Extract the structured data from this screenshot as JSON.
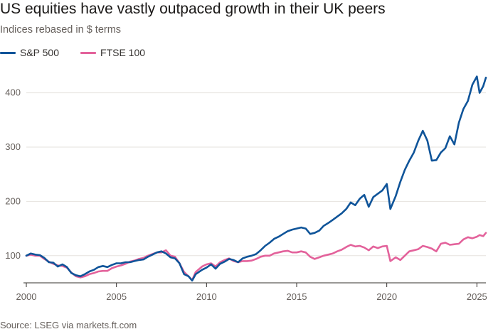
{
  "title": "US equities have vastly outpaced growth in their UK peers",
  "subtitle": "Indices rebased in $ terms",
  "source": "Source: LSEG via markets.ft.com",
  "colors": {
    "sp500": "#0f5499",
    "ftse": "#e3629b",
    "grid": "#e6e2de",
    "axis": "#33302e"
  },
  "chart_data": {
    "type": "line",
    "title": "US equities have vastly outpaced growth in their UK peers",
    "subtitle": "Indices rebased in $ terms",
    "xlabel": "",
    "ylabel": "",
    "xlim": [
      2000,
      2025.5
    ],
    "ylim": [
      50,
      440
    ],
    "xticks": [
      2000,
      2005,
      2010,
      2015,
      2020,
      2025
    ],
    "xtick_labels": [
      "2000",
      "2005",
      "2010",
      "2015",
      "2020",
      "2025"
    ],
    "yticks": [
      100,
      200,
      300,
      400
    ],
    "ytick_labels": [
      "100",
      "200",
      "300",
      "400"
    ],
    "grid": "horizontal",
    "legend_position": "top-left",
    "series": [
      {
        "name": "S&P 500",
        "color": "#0f5499",
        "points": [
          [
            2000.0,
            100
          ],
          [
            2000.25,
            104
          ],
          [
            2000.5,
            102
          ],
          [
            2000.75,
            101
          ],
          [
            2001.0,
            96
          ],
          [
            2001.25,
            88
          ],
          [
            2001.5,
            87
          ],
          [
            2001.75,
            80
          ],
          [
            2002.0,
            84
          ],
          [
            2002.25,
            79
          ],
          [
            2002.5,
            68
          ],
          [
            2002.75,
            64
          ],
          [
            2003.0,
            62
          ],
          [
            2003.25,
            66
          ],
          [
            2003.5,
            71
          ],
          [
            2003.75,
            74
          ],
          [
            2004.0,
            79
          ],
          [
            2004.25,
            81
          ],
          [
            2004.5,
            79
          ],
          [
            2004.75,
            83
          ],
          [
            2005.0,
            86
          ],
          [
            2005.25,
            86
          ],
          [
            2005.5,
            88
          ],
          [
            2005.75,
            88
          ],
          [
            2006.0,
            90
          ],
          [
            2006.25,
            92
          ],
          [
            2006.5,
            93
          ],
          [
            2006.75,
            98
          ],
          [
            2007.0,
            102
          ],
          [
            2007.25,
            106
          ],
          [
            2007.5,
            108
          ],
          [
            2007.75,
            104
          ],
          [
            2008.0,
            97
          ],
          [
            2008.25,
            95
          ],
          [
            2008.5,
            86
          ],
          [
            2008.75,
            66
          ],
          [
            2009.0,
            62
          ],
          [
            2009.2,
            54
          ],
          [
            2009.4,
            66
          ],
          [
            2009.75,
            74
          ],
          [
            2010.0,
            78
          ],
          [
            2010.25,
            84
          ],
          [
            2010.5,
            76
          ],
          [
            2010.75,
            85
          ],
          [
            2011.0,
            89
          ],
          [
            2011.25,
            94
          ],
          [
            2011.5,
            92
          ],
          [
            2011.75,
            88
          ],
          [
            2012.0,
            95
          ],
          [
            2012.25,
            98
          ],
          [
            2012.5,
            100
          ],
          [
            2012.75,
            103
          ],
          [
            2013.0,
            110
          ],
          [
            2013.25,
            118
          ],
          [
            2013.5,
            124
          ],
          [
            2013.75,
            131
          ],
          [
            2014.0,
            135
          ],
          [
            2014.25,
            140
          ],
          [
            2014.5,
            145
          ],
          [
            2014.75,
            148
          ],
          [
            2015.0,
            150
          ],
          [
            2015.25,
            152
          ],
          [
            2015.5,
            150
          ],
          [
            2015.75,
            140
          ],
          [
            2016.0,
            142
          ],
          [
            2016.25,
            146
          ],
          [
            2016.5,
            155
          ],
          [
            2016.75,
            160
          ],
          [
            2017.0,
            166
          ],
          [
            2017.25,
            172
          ],
          [
            2017.5,
            178
          ],
          [
            2017.75,
            186
          ],
          [
            2018.0,
            198
          ],
          [
            2018.25,
            193
          ],
          [
            2018.5,
            205
          ],
          [
            2018.75,
            212
          ],
          [
            2019.0,
            190
          ],
          [
            2019.25,
            208
          ],
          [
            2019.5,
            214
          ],
          [
            2019.75,
            220
          ],
          [
            2020.0,
            232
          ],
          [
            2020.2,
            186
          ],
          [
            2020.5,
            210
          ],
          [
            2020.75,
            236
          ],
          [
            2021.0,
            258
          ],
          [
            2021.25,
            275
          ],
          [
            2021.5,
            290
          ],
          [
            2021.75,
            312
          ],
          [
            2022.0,
            330
          ],
          [
            2022.25,
            312
          ],
          [
            2022.5,
            275
          ],
          [
            2022.75,
            276
          ],
          [
            2023.0,
            290
          ],
          [
            2023.25,
            298
          ],
          [
            2023.5,
            320
          ],
          [
            2023.75,
            305
          ],
          [
            2024.0,
            345
          ],
          [
            2024.25,
            370
          ],
          [
            2024.5,
            385
          ],
          [
            2024.75,
            415
          ],
          [
            2025.0,
            430
          ],
          [
            2025.15,
            400
          ],
          [
            2025.35,
            412
          ],
          [
            2025.5,
            428
          ]
        ]
      },
      {
        "name": "FTSE 100",
        "color": "#e3629b",
        "points": [
          [
            2000.0,
            100
          ],
          [
            2000.25,
            102
          ],
          [
            2000.5,
            100
          ],
          [
            2000.75,
            100
          ],
          [
            2001.0,
            94
          ],
          [
            2001.25,
            89
          ],
          [
            2001.5,
            85
          ],
          [
            2001.75,
            82
          ],
          [
            2002.0,
            81
          ],
          [
            2002.25,
            78
          ],
          [
            2002.5,
            69
          ],
          [
            2002.75,
            62
          ],
          [
            2003.0,
            60
          ],
          [
            2003.25,
            62
          ],
          [
            2003.5,
            66
          ],
          [
            2003.75,
            68
          ],
          [
            2004.0,
            71
          ],
          [
            2004.25,
            72
          ],
          [
            2004.5,
            72
          ],
          [
            2004.75,
            77
          ],
          [
            2005.0,
            80
          ],
          [
            2005.25,
            82
          ],
          [
            2005.5,
            85
          ],
          [
            2005.75,
            89
          ],
          [
            2006.0,
            91
          ],
          [
            2006.25,
            94
          ],
          [
            2006.5,
            96
          ],
          [
            2006.75,
            100
          ],
          [
            2007.0,
            103
          ],
          [
            2007.25,
            106
          ],
          [
            2007.5,
            106
          ],
          [
            2007.75,
            110
          ],
          [
            2008.0,
            100
          ],
          [
            2008.25,
            98
          ],
          [
            2008.5,
            86
          ],
          [
            2008.75,
            70
          ],
          [
            2009.0,
            62
          ],
          [
            2009.2,
            55
          ],
          [
            2009.4,
            70
          ],
          [
            2009.75,
            80
          ],
          [
            2010.0,
            84
          ],
          [
            2010.25,
            86
          ],
          [
            2010.5,
            80
          ],
          [
            2010.75,
            88
          ],
          [
            2011.0,
            92
          ],
          [
            2011.25,
            95
          ],
          [
            2011.5,
            90
          ],
          [
            2011.75,
            88
          ],
          [
            2012.0,
            90
          ],
          [
            2012.25,
            90
          ],
          [
            2012.5,
            91
          ],
          [
            2012.75,
            94
          ],
          [
            2013.0,
            98
          ],
          [
            2013.25,
            100
          ],
          [
            2013.5,
            100
          ],
          [
            2013.75,
            104
          ],
          [
            2014.0,
            106
          ],
          [
            2014.25,
            108
          ],
          [
            2014.5,
            109
          ],
          [
            2014.75,
            106
          ],
          [
            2015.0,
            106
          ],
          [
            2015.25,
            108
          ],
          [
            2015.5,
            106
          ],
          [
            2015.75,
            98
          ],
          [
            2016.0,
            94
          ],
          [
            2016.25,
            97
          ],
          [
            2016.5,
            100
          ],
          [
            2016.75,
            102
          ],
          [
            2017.0,
            104
          ],
          [
            2017.25,
            108
          ],
          [
            2017.5,
            111
          ],
          [
            2017.75,
            116
          ],
          [
            2018.0,
            120
          ],
          [
            2018.25,
            117
          ],
          [
            2018.5,
            118
          ],
          [
            2018.75,
            115
          ],
          [
            2019.0,
            110
          ],
          [
            2019.25,
            117
          ],
          [
            2019.5,
            114
          ],
          [
            2019.75,
            117
          ],
          [
            2020.0,
            118
          ],
          [
            2020.2,
            90
          ],
          [
            2020.5,
            97
          ],
          [
            2020.75,
            92
          ],
          [
            2021.0,
            100
          ],
          [
            2021.25,
            108
          ],
          [
            2021.5,
            110
          ],
          [
            2021.75,
            112
          ],
          [
            2022.0,
            118
          ],
          [
            2022.25,
            116
          ],
          [
            2022.5,
            113
          ],
          [
            2022.75,
            108
          ],
          [
            2023.0,
            122
          ],
          [
            2023.25,
            124
          ],
          [
            2023.5,
            120
          ],
          [
            2023.75,
            121
          ],
          [
            2024.0,
            122
          ],
          [
            2024.25,
            130
          ],
          [
            2024.5,
            134
          ],
          [
            2024.75,
            132
          ],
          [
            2025.0,
            135
          ],
          [
            2025.15,
            138
          ],
          [
            2025.35,
            136
          ],
          [
            2025.5,
            142
          ]
        ]
      }
    ]
  }
}
